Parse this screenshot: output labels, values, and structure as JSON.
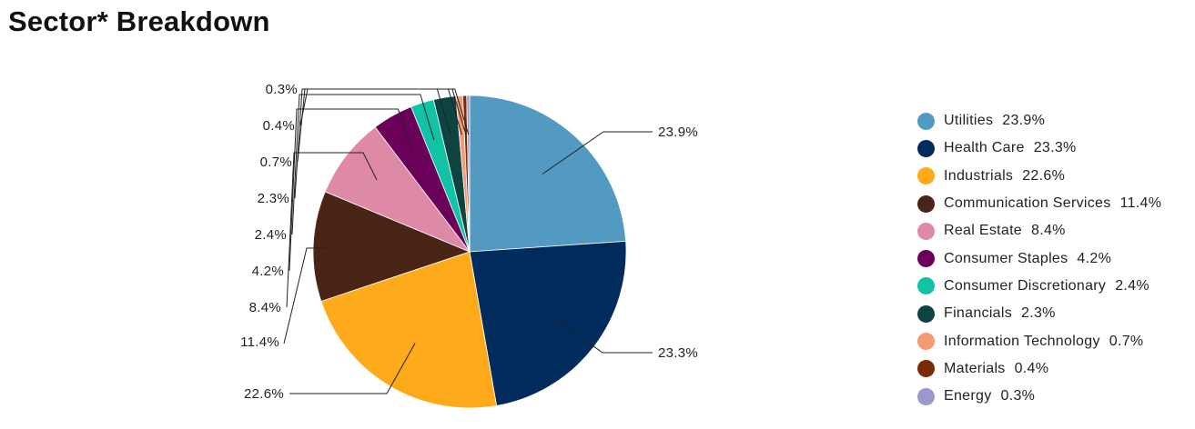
{
  "chart_data": {
    "type": "pie",
    "title": "Sector* Breakdown",
    "start_angle": "12 o'clock, clockwise",
    "legend_position": "right",
    "slices": [
      {
        "label": "Utilities",
        "value": 23.9,
        "display": "23.9%",
        "color": "#539ac3"
      },
      {
        "label": "Health Care",
        "value": 23.3,
        "display": "23.3%",
        "color": "#002b5c"
      },
      {
        "label": "Industrials",
        "value": 22.6,
        "display": "22.6%",
        "color": "#ffaa1a"
      },
      {
        "label": "Communication Services",
        "value": 11.4,
        "display": "11.4%",
        "color": "#4a2414"
      },
      {
        "label": "Real Estate",
        "value": 8.4,
        "display": "8.4%",
        "color": "#de8aa6"
      },
      {
        "label": "Consumer Staples",
        "value": 4.2,
        "display": "4.2%",
        "color": "#6b0058"
      },
      {
        "label": "Consumer Discretionary",
        "value": 2.4,
        "display": "2.4%",
        "color": "#10c3a5"
      },
      {
        "label": "Financials",
        "value": 2.3,
        "display": "2.3%",
        "color": "#0d4340"
      },
      {
        "label": "Information Technology",
        "value": 0.7,
        "display": "0.7%",
        "color": "#f59a72"
      },
      {
        "label": "Materials",
        "value": 0.4,
        "display": "0.4%",
        "color": "#7a2a06"
      },
      {
        "label": "Energy",
        "value": 0.3,
        "display": "0.3%",
        "color": "#9b98cf"
      }
    ]
  }
}
